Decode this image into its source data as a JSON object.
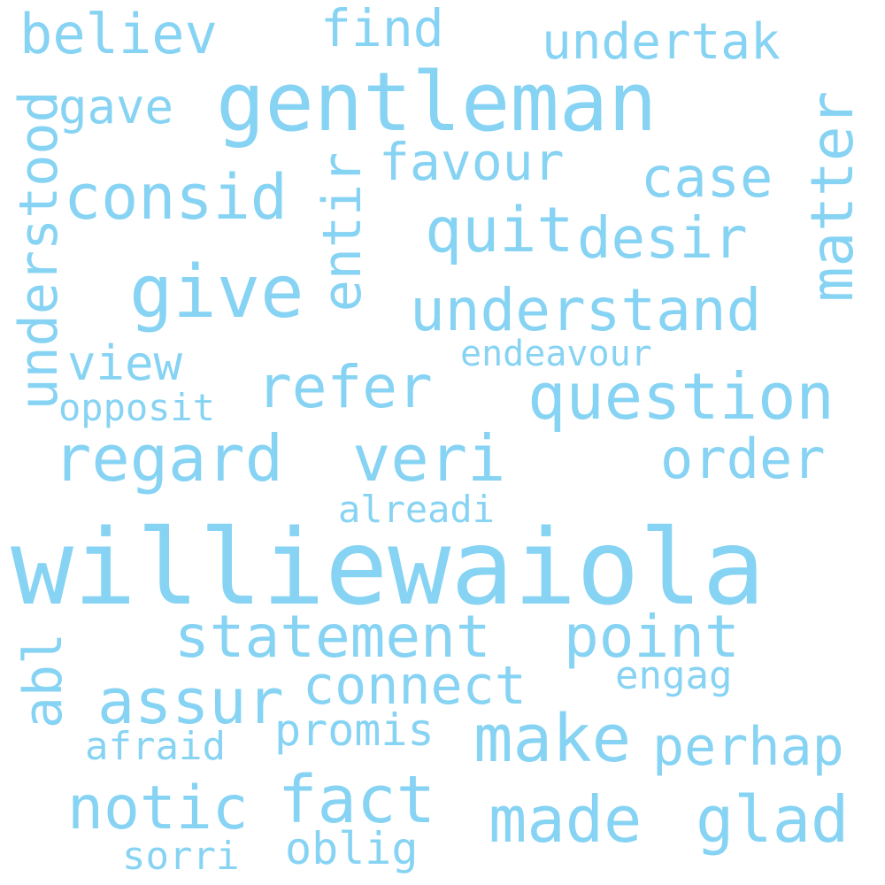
{
  "colors": {
    "word": "#87d3f3",
    "background": "#ffffff"
  },
  "words": {
    "williewaiola": "williewaiola",
    "gentleman": "gentleman",
    "question": "question",
    "understand": "understand",
    "statement": "statement",
    "point": "point",
    "make": "make",
    "regard": "regard",
    "veri": "veri",
    "order": "order",
    "consid": "consid",
    "give": "give",
    "refer": "refer",
    "connect": "connect",
    "assur": "assur",
    "perhap": "perhap",
    "made": "made",
    "glad": "glad",
    "notic": "notic",
    "fact": "fact",
    "quit": "quit",
    "desir": "desir",
    "case": "case",
    "favour": "favour",
    "believ": "believ",
    "find": "find",
    "undertak": "undertak",
    "gave": "gave",
    "view": "view",
    "promis": "promis",
    "oblig": "oblig",
    "sorri": "sorri",
    "afraid": "afraid",
    "engag": "engag",
    "endeavour": "endeavour",
    "alreadi": "alreadi",
    "opposit": "opposit",
    "understood": "understood",
    "entir": "entir",
    "matter": "matter",
    "abl": "abl"
  }
}
